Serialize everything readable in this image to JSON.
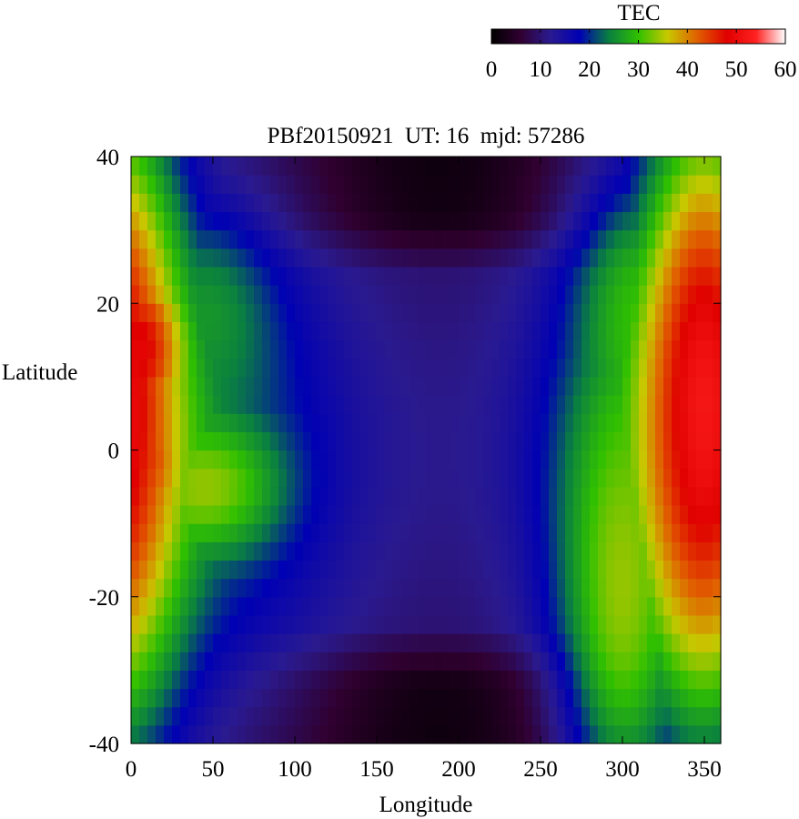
{
  "chart_data": {
    "type": "heatmap",
    "title": "PBf20150921  UT: 16  mjd: 57286",
    "xlabel": "Longitude",
    "ylabel": "Latitude",
    "xlim": [
      0,
      360
    ],
    "ylim": [
      -40,
      40
    ],
    "x_ticks": [
      0,
      50,
      100,
      150,
      200,
      250,
      300,
      350
    ],
    "y_ticks": [
      -40,
      -20,
      0,
      20,
      40
    ],
    "colorbar": {
      "label": "TEC",
      "range": [
        0,
        60
      ],
      "ticks": [
        0,
        10,
        20,
        30,
        40,
        50,
        60
      ],
      "placement": "top-right",
      "colormap": [
        {
          "value": 0,
          "color": "#000000"
        },
        {
          "value": 6,
          "color": "#300030"
        },
        {
          "value": 12,
          "color": "#2a1a90"
        },
        {
          "value": 18,
          "color": "#0000b4"
        },
        {
          "value": 24,
          "color": "#0a8040"
        },
        {
          "value": 30,
          "color": "#30c000"
        },
        {
          "value": 36,
          "color": "#c8c800"
        },
        {
          "value": 42,
          "color": "#e06000"
        },
        {
          "value": 48,
          "color": "#e00000"
        },
        {
          "value": 54,
          "color": "#ff2020"
        },
        {
          "value": 60,
          "color": "#ffffff"
        }
      ]
    },
    "grid_resolution": {
      "lon_step": 5,
      "lat_step": 2.5
    },
    "features": [
      {
        "name": "western-crest-north",
        "lon": 5,
        "lat": 14,
        "tec": 49,
        "lon_width": 20,
        "lat_width": 9
      },
      {
        "name": "western-crest-south",
        "lon": 5,
        "lat": -1,
        "tec": 46,
        "lon_width": 20,
        "lat_width": 9
      },
      {
        "name": "western-arm-south",
        "lon": 45,
        "lat": -5,
        "tec": 34,
        "lon_width": 30,
        "lat_width": 6
      },
      {
        "name": "western-arm-north",
        "lon": 45,
        "lat": 18,
        "tec": 26,
        "lon_width": 28,
        "lat_width": 9
      },
      {
        "name": "eastern-crest",
        "lon": 350,
        "lat": 6,
        "tec": 52,
        "lon_width": 28,
        "lat_width": 28
      },
      {
        "name": "eastern-band-south",
        "lon": 300,
        "lat": -18,
        "tec": 34,
        "lon_width": 25,
        "lat_width": 22
      },
      {
        "name": "eastern-band-north",
        "lon": 310,
        "lat": 18,
        "tec": 30,
        "lon_width": 25,
        "lat_width": 12
      }
    ]
  }
}
